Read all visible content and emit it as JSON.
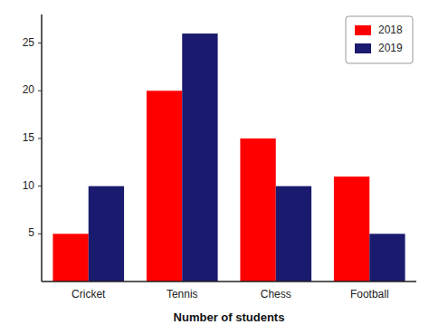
{
  "chart_data": {
    "type": "bar",
    "xlabel": "Number of students",
    "categories": [
      "Cricket",
      "Tennis",
      "Chess",
      "Football"
    ],
    "series": [
      {
        "name": "2018",
        "color": "#ff0000",
        "values": [
          5,
          20,
          15,
          11
        ]
      },
      {
        "name": "2019",
        "color": "#1a1a6e",
        "values": [
          10,
          26,
          10,
          5
        ]
      }
    ],
    "ylim": [
      0,
      28
    ],
    "yticks": [
      5,
      10,
      15,
      20,
      25
    ],
    "legend": "upper right",
    "grid": false
  }
}
